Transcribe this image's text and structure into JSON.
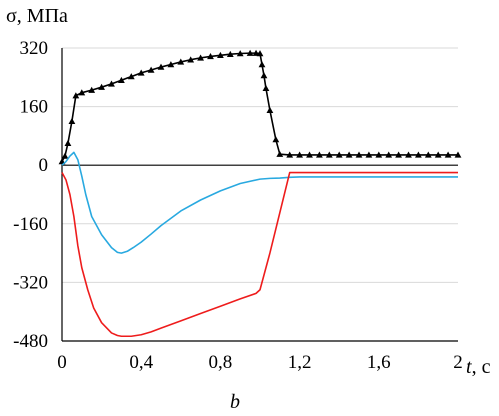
{
  "chart_data": {
    "type": "line",
    "ylabel": "σ, МПа",
    "xlabel_var": "t",
    "xlabel_unit": ", с",
    "caption": "b",
    "xlim": [
      0,
      2
    ],
    "ylim": [
      -480,
      320
    ],
    "x_ticks": [
      0,
      0.4,
      0.8,
      1.2,
      1.6,
      2
    ],
    "x_tick_labels": [
      "0",
      "0,4",
      "0,8",
      "1,2",
      "1,6",
      "2"
    ],
    "y_ticks": [
      320,
      160,
      0,
      -160,
      -320,
      -480
    ],
    "y_tick_labels": [
      "320",
      "160",
      "0",
      "-160",
      "-320",
      "-480"
    ],
    "grid": "horizontal",
    "series": [
      {
        "color": "#000000",
        "marker": "triangle",
        "x": [
          0,
          0.015,
          0.03,
          0.05,
          0.07,
          0.1,
          0.15,
          0.2,
          0.25,
          0.3,
          0.35,
          0.4,
          0.45,
          0.5,
          0.55,
          0.6,
          0.65,
          0.7,
          0.75,
          0.8,
          0.85,
          0.9,
          0.95,
          0.98,
          1.0,
          1.01,
          1.02,
          1.03,
          1.05,
          1.08,
          1.1,
          1.15,
          1.2,
          1.25,
          1.3,
          1.35,
          1.4,
          1.45,
          1.5,
          1.55,
          1.6,
          1.65,
          1.7,
          1.75,
          1.8,
          1.85,
          1.9,
          1.95,
          2.0
        ],
        "y": [
          10,
          25,
          60,
          120,
          190,
          198,
          205,
          213,
          222,
          232,
          242,
          252,
          260,
          268,
          275,
          282,
          288,
          293,
          297,
          300,
          303,
          305,
          306,
          306,
          305,
          275,
          245,
          210,
          150,
          70,
          30,
          28,
          28,
          28,
          28,
          28,
          28,
          28,
          28,
          28,
          28,
          28,
          28,
          28,
          28,
          28,
          28,
          28,
          28
        ]
      },
      {
        "color": "#29a9e0",
        "marker": "none",
        "x": [
          0,
          0.02,
          0.04,
          0.06,
          0.08,
          0.1,
          0.12,
          0.15,
          0.2,
          0.25,
          0.28,
          0.3,
          0.33,
          0.36,
          0.4,
          0.45,
          0.5,
          0.6,
          0.7,
          0.8,
          0.9,
          1.0,
          1.05,
          1.1,
          1.15,
          1.2,
          1.3,
          1.4,
          1.6,
          1.8,
          2.0
        ],
        "y": [
          0,
          10,
          25,
          35,
          15,
          -30,
          -80,
          -140,
          -190,
          -225,
          -238,
          -240,
          -235,
          -225,
          -210,
          -188,
          -165,
          -125,
          -95,
          -70,
          -50,
          -38,
          -36,
          -35,
          -33,
          -32,
          -32,
          -32,
          -32,
          -32,
          -32
        ]
      },
      {
        "color": "#ee1c1c",
        "marker": "none",
        "x": [
          0,
          0.02,
          0.04,
          0.06,
          0.08,
          0.1,
          0.13,
          0.16,
          0.2,
          0.25,
          0.28,
          0.3,
          0.35,
          0.4,
          0.45,
          0.5,
          0.6,
          0.7,
          0.8,
          0.9,
          0.98,
          1.0,
          1.05,
          1.1,
          1.15,
          1.2,
          1.4,
          1.6,
          1.8,
          2.0
        ],
        "y": [
          -20,
          -40,
          -80,
          -140,
          -220,
          -280,
          -340,
          -390,
          -430,
          -458,
          -465,
          -467,
          -467,
          -463,
          -455,
          -445,
          -425,
          -405,
          -385,
          -365,
          -350,
          -340,
          -240,
          -130,
          -20,
          -20,
          -20,
          -20,
          -20,
          -20
        ]
      }
    ]
  }
}
